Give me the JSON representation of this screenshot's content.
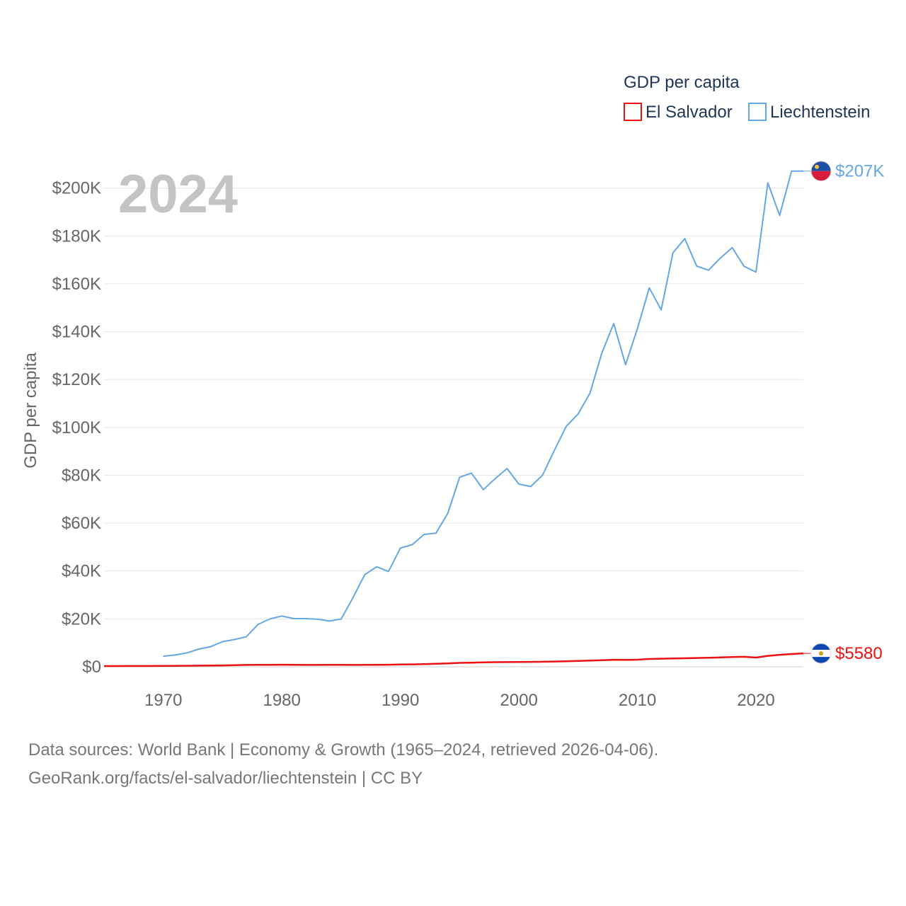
{
  "chart_data": {
    "type": "line",
    "legend_title": "GDP per capita",
    "ylabel": "GDP per capita",
    "current_year": "2024",
    "xlim": [
      1965,
      2024
    ],
    "ylim": [
      0,
      215000
    ],
    "x_ticks": [
      1970,
      1980,
      1990,
      2000,
      2010,
      2020
    ],
    "y_ticks": [
      0,
      20000,
      40000,
      60000,
      80000,
      100000,
      120000,
      140000,
      160000,
      180000,
      200000
    ],
    "y_tick_labels": [
      "$0",
      "$20K",
      "$40K",
      "$60K",
      "$80K",
      "$100K",
      "$120K",
      "$140K",
      "$160K",
      "$180K",
      "$200K"
    ],
    "series": [
      {
        "name": "El Salvador",
        "color": "#ee1111",
        "end_label": "$5580",
        "flag": "el-salvador-flag-icon",
        "x": [
          1965,
          1966,
          1967,
          1968,
          1969,
          1970,
          1971,
          1972,
          1973,
          1974,
          1975,
          1976,
          1977,
          1978,
          1979,
          1980,
          1981,
          1982,
          1983,
          1984,
          1985,
          1986,
          1987,
          1988,
          1989,
          1990,
          1991,
          1992,
          1993,
          1994,
          1995,
          1996,
          1997,
          1998,
          1999,
          2000,
          2001,
          2002,
          2003,
          2004,
          2005,
          2006,
          2007,
          2008,
          2009,
          2010,
          2011,
          2012,
          2013,
          2014,
          2015,
          2016,
          2017,
          2018,
          2019,
          2020,
          2021,
          2022,
          2023,
          2024
        ],
        "values": [
          300,
          310,
          320,
          330,
          340,
          360,
          380,
          410,
          460,
          520,
          560,
          660,
          780,
          820,
          830,
          860,
          790,
          770,
          780,
          800,
          820,
          780,
          790,
          820,
          850,
          950,
          1010,
          1090,
          1230,
          1400,
          1620,
          1730,
          1830,
          1910,
          1950,
          2000,
          2050,
          2110,
          2180,
          2280,
          2420,
          2590,
          2750,
          2920,
          2870,
          2960,
          3240,
          3380,
          3460,
          3550,
          3680,
          3790,
          3910,
          4060,
          4170,
          3850,
          4550,
          4990,
          5310,
          5580
        ]
      },
      {
        "name": "Liechtenstein",
        "color": "#64a6e6",
        "end_label": "$207K",
        "flag": "liechtenstein-flag-icon",
        "x": [
          1970,
          1971,
          1972,
          1973,
          1974,
          1975,
          1976,
          1977,
          1978,
          1979,
          1980,
          1981,
          1982,
          1983,
          1984,
          1985,
          1986,
          1987,
          1988,
          1989,
          1990,
          1991,
          1992,
          1993,
          1994,
          1995,
          1996,
          1997,
          1998,
          1999,
          2000,
          2001,
          2002,
          2003,
          2004,
          2005,
          2006,
          2007,
          2008,
          2009,
          2010,
          2011,
          2012,
          2013,
          2014,
          2015,
          2016,
          2017,
          2018,
          2019,
          2020,
          2021,
          2022,
          2023,
          2024
        ],
        "values": [
          4400,
          4900,
          5800,
          7400,
          8400,
          10500,
          11400,
          12500,
          17700,
          20000,
          21200,
          20100,
          20100,
          19900,
          19100,
          19900,
          28900,
          38500,
          41800,
          39800,
          49600,
          51000,
          55300,
          55800,
          64100,
          79200,
          80900,
          74000,
          78600,
          82800,
          76300,
          75300,
          80100,
          90500,
          100500,
          105600,
          114400,
          131100,
          143400,
          126200,
          141300,
          158300,
          149100,
          173000,
          178900,
          167400,
          165700,
          170800,
          175100,
          167300,
          164900,
          202200,
          188600,
          207100,
          207100
        ]
      }
    ]
  },
  "footer": {
    "line1": "Data sources: World Bank | Economy & Growth (1965–2024, retrieved 2026-04-06).",
    "line2": "GeoRank.org/facts/el-salvador/liechtenstein | CC BY"
  }
}
